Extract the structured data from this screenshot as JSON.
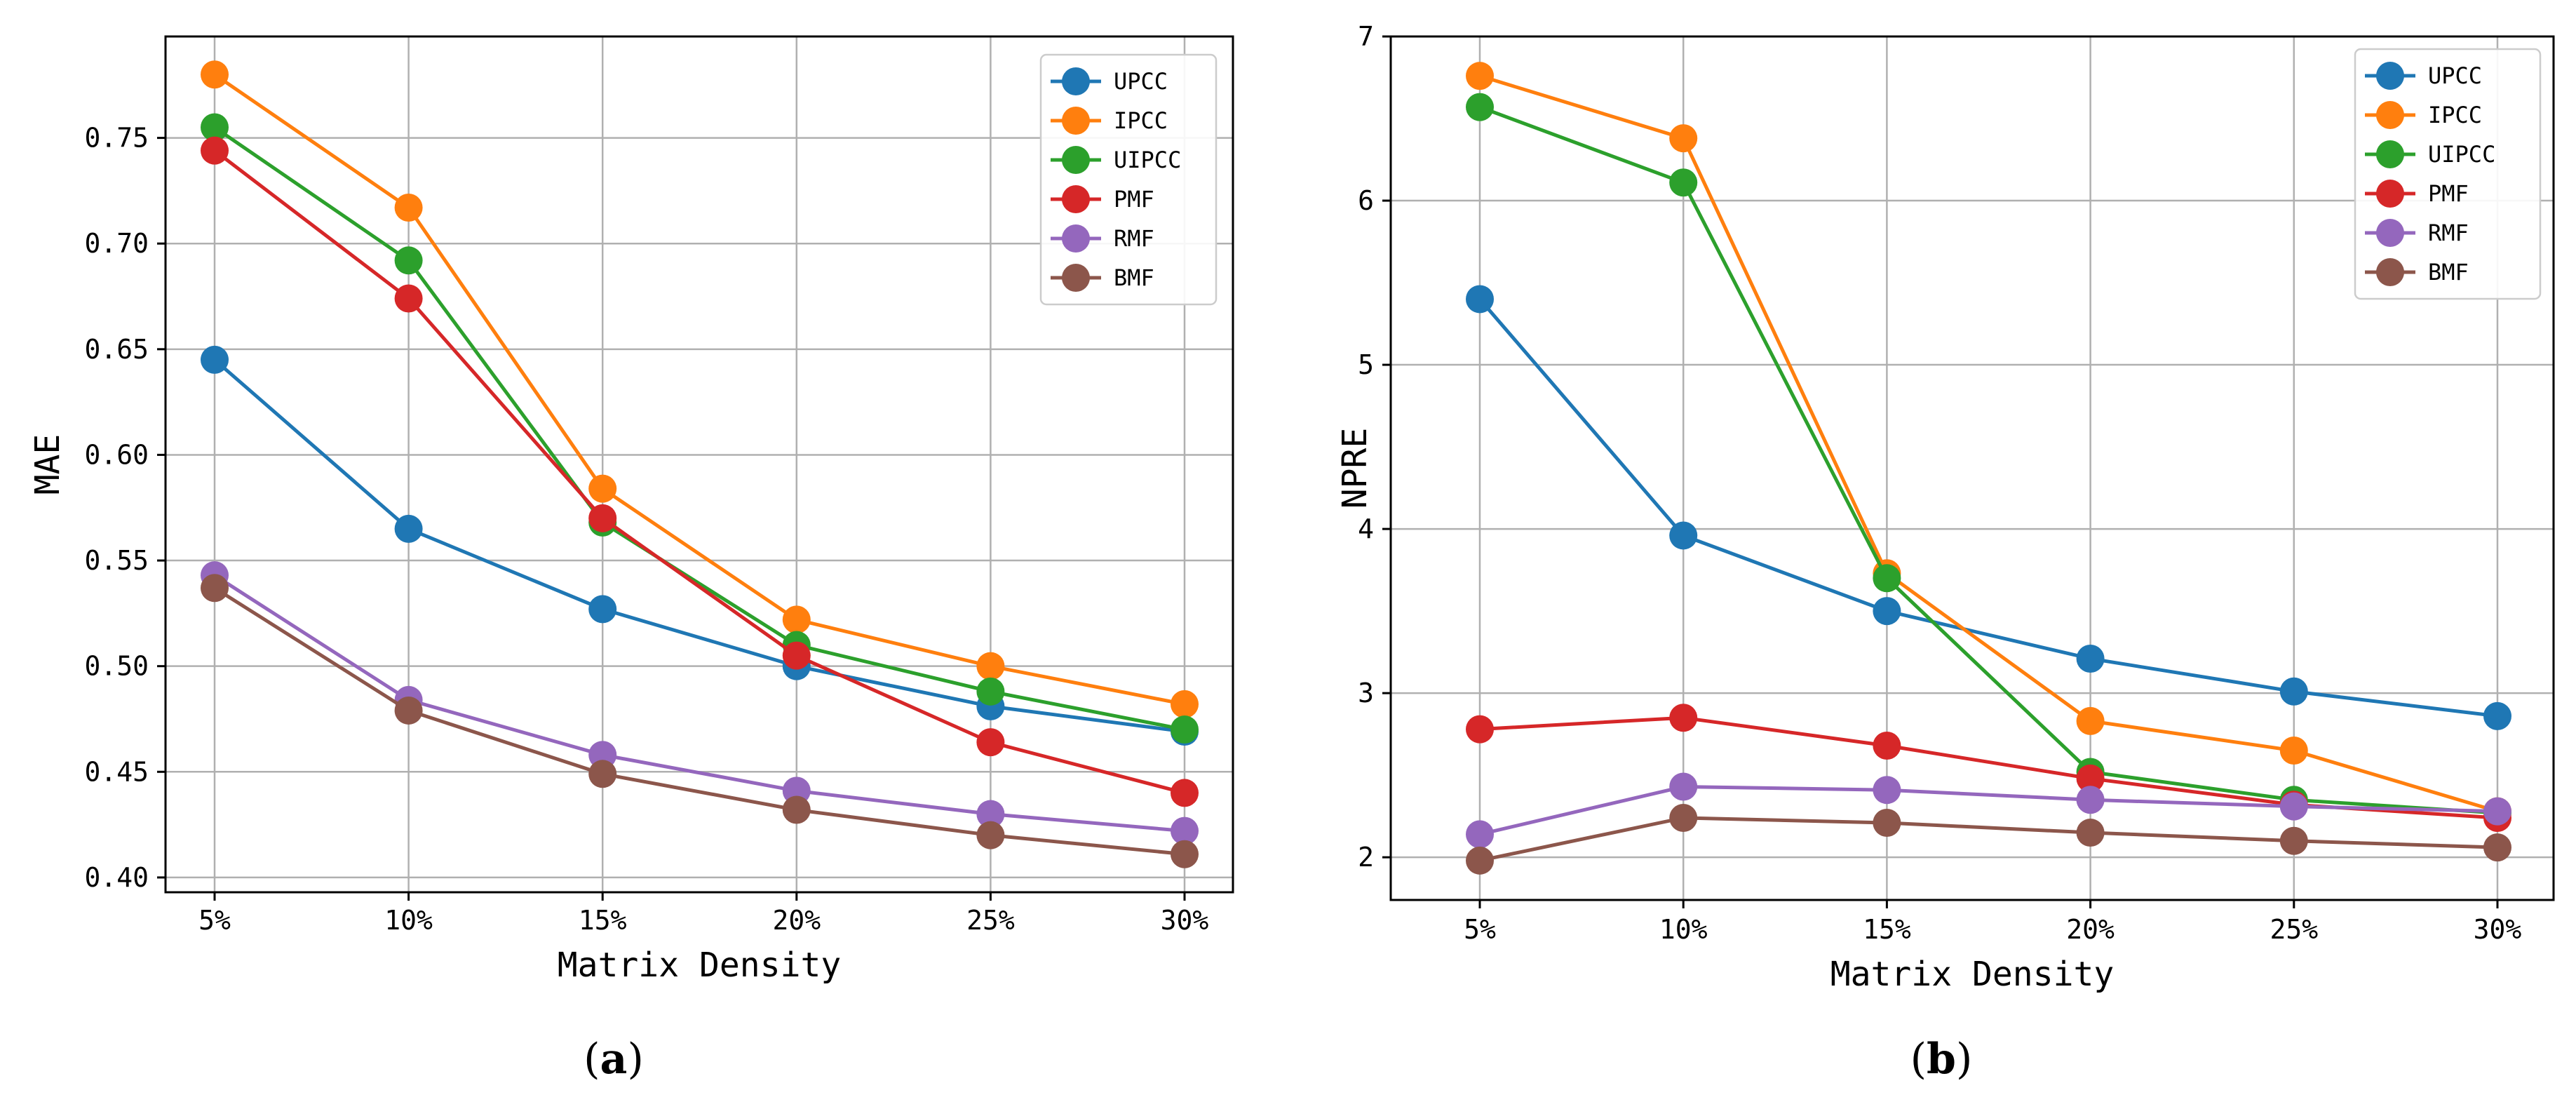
{
  "chart_data": [
    {
      "type": "line",
      "caption_open": "(",
      "caption_letter": "a",
      "caption_close": ")",
      "xlabel": "Matrix Density",
      "ylabel": "MAE",
      "categories": [
        "5%",
        "10%",
        "15%",
        "20%",
        "25%",
        "30%"
      ],
      "ylim": [
        0.393,
        0.798
      ],
      "yticks": [
        0.4,
        0.45,
        0.5,
        0.55,
        0.6,
        0.65,
        0.7,
        0.75
      ],
      "ytick_labels": [
        "0.40",
        "0.45",
        "0.50",
        "0.55",
        "0.60",
        "0.65",
        "0.70",
        "0.75"
      ],
      "grid": true,
      "legend_position": "top-right",
      "series": [
        {
          "name": "UPCC",
          "color": "#1f77b4",
          "values": [
            0.645,
            0.565,
            0.527,
            0.5,
            0.481,
            0.469
          ]
        },
        {
          "name": "IPCC",
          "color": "#ff7f0e",
          "values": [
            0.78,
            0.717,
            0.584,
            0.522,
            0.5,
            0.482
          ]
        },
        {
          "name": "UIPCC",
          "color": "#2ca02c",
          "values": [
            0.755,
            0.692,
            0.568,
            0.51,
            0.488,
            0.47
          ]
        },
        {
          "name": "PMF",
          "color": "#d62728",
          "values": [
            0.744,
            0.674,
            0.57,
            0.505,
            0.464,
            0.44
          ]
        },
        {
          "name": "RMF",
          "color": "#9467bd",
          "values": [
            0.543,
            0.484,
            0.458,
            0.441,
            0.43,
            0.422
          ]
        },
        {
          "name": "BMF",
          "color": "#8c564b",
          "values": [
            0.537,
            0.479,
            0.449,
            0.432,
            0.42,
            0.411
          ]
        }
      ]
    },
    {
      "type": "line",
      "caption_open": "(",
      "caption_letter": "b",
      "caption_close": ")",
      "xlabel": "Matrix Density",
      "ylabel": "NPRE",
      "categories": [
        "5%",
        "10%",
        "15%",
        "20%",
        "25%",
        "30%"
      ],
      "ylim": [
        1.74,
        7.0
      ],
      "yticks": [
        2,
        3,
        4,
        5,
        6,
        7
      ],
      "ytick_labels": [
        "2",
        "3",
        "4",
        "5",
        "6",
        "7"
      ],
      "grid": true,
      "legend_position": "top-right",
      "series": [
        {
          "name": "UPCC",
          "color": "#1f77b4",
          "values": [
            5.4,
            3.96,
            3.5,
            3.21,
            3.01,
            2.86
          ]
        },
        {
          "name": "IPCC",
          "color": "#ff7f0e",
          "values": [
            6.76,
            6.38,
            3.73,
            2.83,
            2.65,
            2.28
          ]
        },
        {
          "name": "UIPCC",
          "color": "#2ca02c",
          "values": [
            6.57,
            6.11,
            3.7,
            2.52,
            2.35,
            2.27
          ]
        },
        {
          "name": "PMF",
          "color": "#d62728",
          "values": [
            2.78,
            2.85,
            2.68,
            2.48,
            2.32,
            2.24
          ]
        },
        {
          "name": "RMF",
          "color": "#9467bd",
          "values": [
            2.14,
            2.43,
            2.41,
            2.35,
            2.31,
            2.28
          ]
        },
        {
          "name": "BMF",
          "color": "#8c564b",
          "values": [
            1.98,
            2.24,
            2.21,
            2.15,
            2.1,
            2.06
          ]
        }
      ]
    }
  ]
}
